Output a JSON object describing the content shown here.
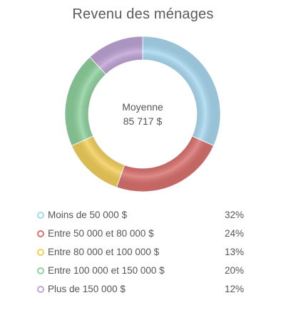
{
  "chart_data": {
    "type": "pie",
    "title": "Revenu des ménages",
    "center": {
      "label": "Moyenne",
      "value": "85 717 $"
    },
    "slices": [
      {
        "label": "Moins de 50 000 $",
        "percent_label": "32%",
        "value": 32,
        "color": "#a9d8ef"
      },
      {
        "label": "Entre 50 000 et 80 000 $",
        "percent_label": "24%",
        "value": 24,
        "color": "#d9726f"
      },
      {
        "label": "Entre 80 000 et 100 000 $",
        "percent_label": "13%",
        "value": 13,
        "color": "#f2cf5b"
      },
      {
        "label": "Entre 100 000 et 150 000 $",
        "percent_label": "20%",
        "value": 20,
        "color": "#8fd19e"
      },
      {
        "label": "Plus de 150 000 $",
        "percent_label": "12%",
        "value": 12,
        "color": "#bfa4d6"
      }
    ],
    "legend_position": "bottom"
  }
}
